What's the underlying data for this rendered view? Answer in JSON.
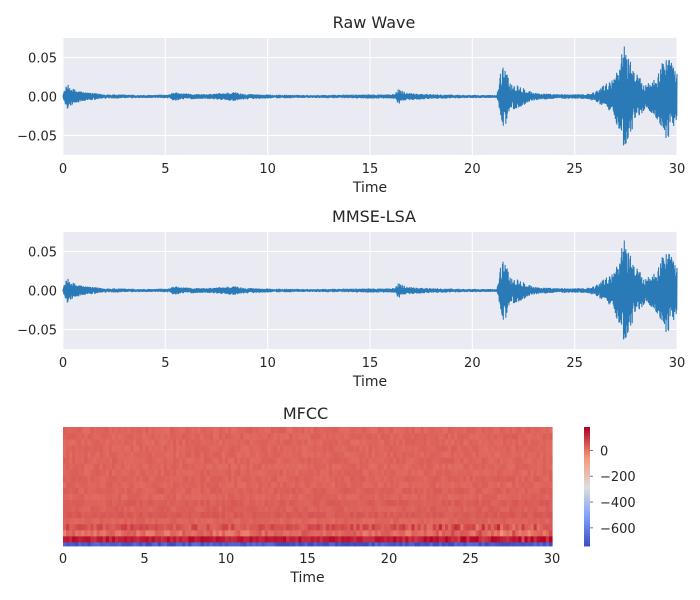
{
  "chart_data": [
    {
      "type": "line",
      "title": "Raw Wave",
      "xlabel": "Time",
      "ylabel": "",
      "xlim": [
        0,
        30
      ],
      "ylim": [
        -0.075,
        0.075
      ],
      "xticks": [
        0,
        5,
        10,
        15,
        20,
        25,
        30
      ],
      "yticks": [
        -0.05,
        0.0,
        0.05
      ],
      "ytick_labels": [
        "−0.05",
        "0.00",
        "0.05"
      ],
      "grid": true,
      "series_color": "#2a7ab8",
      "envelope": [
        {
          "t": 0.0,
          "amp": 0.004
        },
        {
          "t": 0.2,
          "amp": 0.016
        },
        {
          "t": 0.5,
          "amp": 0.01
        },
        {
          "t": 1.0,
          "amp": 0.006
        },
        {
          "t": 2.0,
          "amp": 0.003
        },
        {
          "t": 3.0,
          "amp": 0.0025
        },
        {
          "t": 4.0,
          "amp": 0.002
        },
        {
          "t": 5.2,
          "amp": 0.0025
        },
        {
          "t": 5.4,
          "amp": 0.006
        },
        {
          "t": 5.8,
          "amp": 0.004
        },
        {
          "t": 7.0,
          "amp": 0.003
        },
        {
          "t": 8.4,
          "amp": 0.006
        },
        {
          "t": 8.7,
          "amp": 0.004
        },
        {
          "t": 10.0,
          "amp": 0.0025
        },
        {
          "t": 12.0,
          "amp": 0.002
        },
        {
          "t": 14.0,
          "amp": 0.0025
        },
        {
          "t": 16.2,
          "amp": 0.003
        },
        {
          "t": 16.4,
          "amp": 0.01
        },
        {
          "t": 16.8,
          "amp": 0.005
        },
        {
          "t": 18.0,
          "amp": 0.003
        },
        {
          "t": 20.0,
          "amp": 0.002
        },
        {
          "t": 21.2,
          "amp": 0.002
        },
        {
          "t": 21.4,
          "amp": 0.035
        },
        {
          "t": 21.6,
          "amp": 0.04
        },
        {
          "t": 21.9,
          "amp": 0.018
        },
        {
          "t": 22.5,
          "amp": 0.012
        },
        {
          "t": 23.0,
          "amp": 0.005
        },
        {
          "t": 24.0,
          "amp": 0.003
        },
        {
          "t": 25.5,
          "amp": 0.003
        },
        {
          "t": 26.0,
          "amp": 0.006
        },
        {
          "t": 26.4,
          "amp": 0.015
        },
        {
          "t": 26.8,
          "amp": 0.02
        },
        {
          "t": 27.2,
          "amp": 0.045
        },
        {
          "t": 27.4,
          "amp": 0.068
        },
        {
          "t": 27.7,
          "amp": 0.05
        },
        {
          "t": 28.0,
          "amp": 0.03
        },
        {
          "t": 28.5,
          "amp": 0.015
        },
        {
          "t": 29.0,
          "amp": 0.03
        },
        {
          "t": 29.3,
          "amp": 0.045
        },
        {
          "t": 29.5,
          "amp": 0.058
        },
        {
          "t": 29.8,
          "amp": 0.04
        },
        {
          "t": 30.0,
          "amp": 0.03
        }
      ]
    },
    {
      "type": "line",
      "title": "MMSE-LSA",
      "xlabel": "Time",
      "ylabel": "",
      "xlim": [
        0,
        30
      ],
      "ylim": [
        -0.075,
        0.075
      ],
      "xticks": [
        0,
        5,
        10,
        15,
        20,
        25,
        30
      ],
      "yticks": [
        -0.05,
        0.0,
        0.05
      ],
      "ytick_labels": [
        "−0.05",
        "0.00",
        "0.05"
      ],
      "grid": true,
      "series_color": "#2a7ab8",
      "envelope": [
        {
          "t": 0.0,
          "amp": 0.004
        },
        {
          "t": 0.2,
          "amp": 0.016
        },
        {
          "t": 0.5,
          "amp": 0.01
        },
        {
          "t": 1.0,
          "amp": 0.006
        },
        {
          "t": 2.0,
          "amp": 0.003
        },
        {
          "t": 3.0,
          "amp": 0.0025
        },
        {
          "t": 4.0,
          "amp": 0.002
        },
        {
          "t": 5.2,
          "amp": 0.0025
        },
        {
          "t": 5.4,
          "amp": 0.006
        },
        {
          "t": 5.8,
          "amp": 0.004
        },
        {
          "t": 7.0,
          "amp": 0.003
        },
        {
          "t": 8.4,
          "amp": 0.006
        },
        {
          "t": 8.7,
          "amp": 0.004
        },
        {
          "t": 10.0,
          "amp": 0.0025
        },
        {
          "t": 12.0,
          "amp": 0.002
        },
        {
          "t": 14.0,
          "amp": 0.0025
        },
        {
          "t": 16.2,
          "amp": 0.003
        },
        {
          "t": 16.4,
          "amp": 0.01
        },
        {
          "t": 16.8,
          "amp": 0.005
        },
        {
          "t": 18.0,
          "amp": 0.003
        },
        {
          "t": 20.0,
          "amp": 0.002
        },
        {
          "t": 21.2,
          "amp": 0.002
        },
        {
          "t": 21.4,
          "amp": 0.035
        },
        {
          "t": 21.6,
          "amp": 0.04
        },
        {
          "t": 21.9,
          "amp": 0.018
        },
        {
          "t": 22.5,
          "amp": 0.012
        },
        {
          "t": 23.0,
          "amp": 0.005
        },
        {
          "t": 24.0,
          "amp": 0.003
        },
        {
          "t": 25.5,
          "amp": 0.003
        },
        {
          "t": 26.0,
          "amp": 0.006
        },
        {
          "t": 26.4,
          "amp": 0.015
        },
        {
          "t": 26.8,
          "amp": 0.02
        },
        {
          "t": 27.2,
          "amp": 0.045
        },
        {
          "t": 27.4,
          "amp": 0.068
        },
        {
          "t": 27.7,
          "amp": 0.05
        },
        {
          "t": 28.0,
          "amp": 0.03
        },
        {
          "t": 28.5,
          "amp": 0.015
        },
        {
          "t": 29.0,
          "amp": 0.03
        },
        {
          "t": 29.3,
          "amp": 0.045
        },
        {
          "t": 29.5,
          "amp": 0.058
        },
        {
          "t": 29.8,
          "amp": 0.04
        },
        {
          "t": 30.0,
          "amp": 0.03
        }
      ]
    },
    {
      "type": "heatmap",
      "title": "MFCC",
      "xlabel": "Time",
      "ylabel": "",
      "xlim": [
        0,
        30
      ],
      "xticks": [
        0,
        5,
        10,
        15,
        20,
        25,
        30
      ],
      "colormap": "coolwarm",
      "colorbar": {
        "range": [
          -740,
          180
        ],
        "ticks": [
          0,
          -200,
          -400,
          -600
        ],
        "tick_labels": [
          "0",
          "−200",
          "−400",
          "−600"
        ]
      },
      "coefficient_rows": [
        {
          "coef": 0,
          "value": -700
        },
        {
          "coef": 1,
          "value": 140
        },
        {
          "coef": 2,
          "value": 20
        },
        {
          "coef": 3,
          "value": 60
        },
        {
          "coef": 4,
          "value": 30
        },
        {
          "coef": 5,
          "value": 45
        },
        {
          "coef": 6,
          "value": 35
        },
        {
          "coef": 7,
          "value": 40
        },
        {
          "coef": 8,
          "value": 30
        },
        {
          "coef": 9,
          "value": 35
        },
        {
          "coef": 10,
          "value": 30
        },
        {
          "coef": 11,
          "value": 32
        },
        {
          "coef": 12,
          "value": 30
        },
        {
          "coef": 13,
          "value": 28
        },
        {
          "coef": 14,
          "value": 30
        },
        {
          "coef": 15,
          "value": 28
        },
        {
          "coef": 16,
          "value": 30
        },
        {
          "coef": 17,
          "value": 28
        },
        {
          "coef": 18,
          "value": 30
        },
        {
          "coef": 19,
          "value": 28
        }
      ]
    }
  ]
}
